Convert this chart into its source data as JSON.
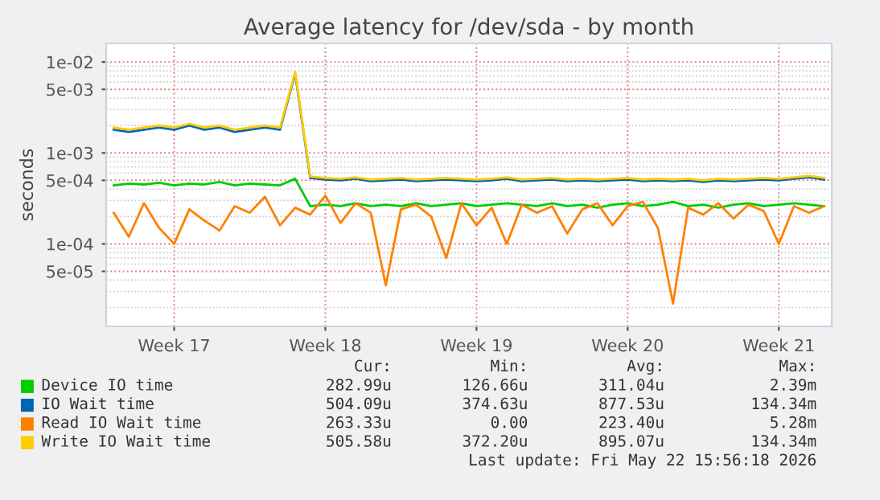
{
  "chart_data": {
    "type": "line",
    "title": "Average latency for /dev/sda - by month",
    "ylabel": "seconds",
    "log": "y",
    "grid": true,
    "legend": "bottom",
    "marker": "none",
    "line_style": "solid",
    "ylim": [
      1.24e-05,
      0.016
    ],
    "yticks": [
      {
        "value": 5e-05,
        "label": "5e-05"
      },
      {
        "value": 0.0001,
        "label": "1e-04"
      },
      {
        "value": 0.0005,
        "label": "5e-04"
      },
      {
        "value": 0.001,
        "label": "1e-03"
      },
      {
        "value": 0.005,
        "label": "5e-03"
      },
      {
        "value": 0.01,
        "label": "1e-02"
      }
    ],
    "categories": [
      null,
      null,
      null,
      null,
      "Week 17",
      null,
      null,
      null,
      null,
      null,
      null,
      null,
      null,
      null,
      "Week 18",
      null,
      null,
      null,
      null,
      null,
      null,
      null,
      null,
      null,
      "Week 19",
      null,
      null,
      null,
      null,
      null,
      null,
      null,
      null,
      null,
      "Week 20",
      null,
      null,
      null,
      null,
      null,
      null,
      null,
      null,
      null,
      "Week 21",
      null,
      null,
      null
    ],
    "series": [
      {
        "name": "Device IO time",
        "color": "#00cc00",
        "values": [
          0.00044,
          0.00046,
          0.00045,
          0.00047,
          0.00044,
          0.00046,
          0.00045,
          0.00048,
          0.00044,
          0.00046,
          0.00045,
          0.00044,
          0.00052,
          0.00026,
          0.00027,
          0.00026,
          0.00028,
          0.00026,
          0.00027,
          0.00026,
          0.00028,
          0.00026,
          0.00027,
          0.00028,
          0.00026,
          0.00027,
          0.00028,
          0.00027,
          0.00026,
          0.00028,
          0.00026,
          0.00027,
          0.00025,
          0.00027,
          0.00028,
          0.00026,
          0.00027,
          0.00029,
          0.00026,
          0.00027,
          0.00025,
          0.00027,
          0.00028,
          0.00026,
          0.00027,
          0.00028,
          0.00027,
          0.00026
        ]
      },
      {
        "name": "IO Wait time",
        "color": "#0066b3",
        "values": [
          0.0018,
          0.0017,
          0.0018,
          0.0019,
          0.0018,
          0.002,
          0.0018,
          0.0019,
          0.0017,
          0.0018,
          0.0019,
          0.0018,
          0.0075,
          0.00053,
          0.00051,
          0.0005,
          0.00052,
          0.00049,
          0.0005,
          0.00051,
          0.00049,
          0.0005,
          0.00051,
          0.0005,
          0.00049,
          0.0005,
          0.00052,
          0.00049,
          0.0005,
          0.00051,
          0.00049,
          0.0005,
          0.00049,
          0.0005,
          0.00051,
          0.00049,
          0.0005,
          0.00049,
          0.0005,
          0.00048,
          0.0005,
          0.00049,
          0.0005,
          0.00051,
          0.0005,
          0.00052,
          0.00054,
          0.00051
        ]
      },
      {
        "name": "Read IO Wait time",
        "color": "#ff8000",
        "values": [
          0.00022,
          0.00012,
          0.00028,
          0.00015,
          0.0001,
          0.00024,
          0.00018,
          0.00014,
          0.00026,
          0.00022,
          0.00033,
          0.00016,
          0.00025,
          0.00021,
          0.00034,
          0.00017,
          0.00028,
          0.00022,
          3.5e-05,
          0.00024,
          0.00027,
          0.0002,
          7e-05,
          0.00028,
          0.00016,
          0.00025,
          0.0001,
          0.00027,
          0.00022,
          0.00026,
          0.00013,
          0.00024,
          0.00028,
          0.00016,
          0.00026,
          0.00029,
          0.00015,
          2.2e-05,
          0.00025,
          0.00021,
          0.00028,
          0.00019,
          0.00027,
          0.00023,
          0.0001,
          0.00026,
          0.00022,
          0.00026
        ]
      },
      {
        "name": "Write IO Wait time",
        "color": "#ffcc00",
        "values": [
          0.0019,
          0.0018,
          0.0019,
          0.002,
          0.0019,
          0.0021,
          0.0019,
          0.002,
          0.0018,
          0.0019,
          0.002,
          0.0019,
          0.0078,
          0.00055,
          0.00053,
          0.00052,
          0.00054,
          0.00051,
          0.00052,
          0.00053,
          0.00051,
          0.00052,
          0.00053,
          0.00052,
          0.00051,
          0.00052,
          0.00054,
          0.00051,
          0.00052,
          0.00053,
          0.00051,
          0.00052,
          0.00051,
          0.00052,
          0.00053,
          0.00051,
          0.00052,
          0.00051,
          0.00052,
          0.0005,
          0.00052,
          0.00051,
          0.00052,
          0.00053,
          0.00052,
          0.00054,
          0.00056,
          0.00053
        ]
      }
    ],
    "annotations": [
      "Cur:",
      "Min:",
      "Avg:",
      "Max:",
      "282.99u",
      "126.66u",
      "311.04u",
      "2.39m",
      "504.09u",
      "374.63u",
      "877.53u",
      "134.34m",
      "263.33u",
      "0.00",
      "223.40u",
      "5.28m",
      "505.58u",
      "372.20u",
      "895.07u",
      "134.34m",
      "Last update: Fri May 22 15:56:18 2026"
    ]
  }
}
